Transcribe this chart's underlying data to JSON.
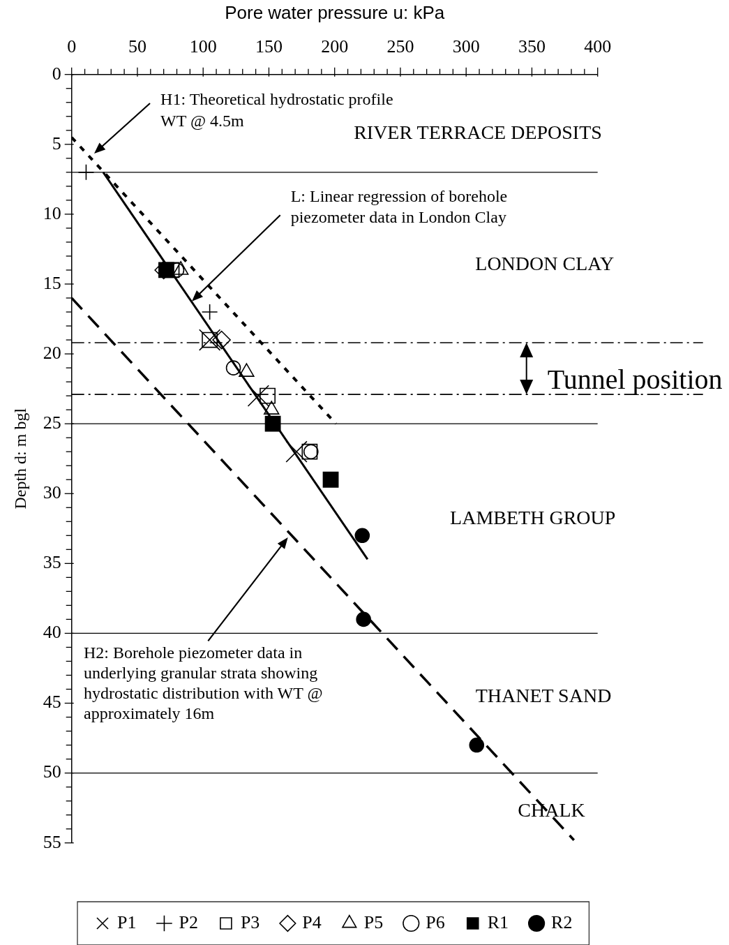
{
  "chart_data": {
    "type": "scatter",
    "xlabel": "Pore water pressure u: kPa",
    "ylabel": "Depth d: m bgl",
    "xlim": [
      0,
      400
    ],
    "ylim": [
      55,
      0
    ],
    "xticks": [
      0,
      {
        "value": 10,
        "label": null
      },
      {
        "value": 20,
        "label": null
      },
      {
        "value": 30,
        "label": null
      },
      {
        "value": 40,
        "label": null
      },
      50,
      {
        "value": 60,
        "label": null
      },
      {
        "value": 70,
        "label": null
      },
      {
        "value": 80,
        "label": null
      },
      {
        "value": 90,
        "label": null
      },
      100,
      {
        "value": 110,
        "label": null
      },
      {
        "value": 120,
        "label": null
      },
      {
        "value": 130,
        "label": null
      },
      {
        "value": 140,
        "label": null
      },
      150,
      {
        "value": 160,
        "label": null
      },
      {
        "value": 170,
        "label": null
      },
      {
        "value": 180,
        "label": null
      },
      {
        "value": 190,
        "label": null
      },
      200,
      {
        "value": 210,
        "label": null
      },
      {
        "value": 220,
        "label": null
      },
      {
        "value": 230,
        "label": null
      },
      {
        "value": 240,
        "label": null
      },
      250,
      {
        "value": 260,
        "label": null
      },
      {
        "value": 270,
        "label": null
      },
      {
        "value": 280,
        "label": null
      },
      {
        "value": 290,
        "label": null
      },
      300,
      {
        "value": 310,
        "label": null
      },
      {
        "value": 320,
        "label": null
      },
      {
        "value": 330,
        "label": null
      },
      {
        "value": 340,
        "label": null
      },
      350,
      {
        "value": 360,
        "label": null
      },
      {
        "value": 370,
        "label": null
      },
      {
        "value": 380,
        "label": null
      },
      {
        "value": 390,
        "label": null
      },
      400
    ],
    "yticks": [
      0,
      {
        "value": 1,
        "label": null
      },
      {
        "value": 2,
        "label": null
      },
      {
        "value": 3,
        "label": null
      },
      {
        "value": 4,
        "label": null
      },
      5,
      {
        "value": 6,
        "label": null
      },
      {
        "value": 7,
        "label": null
      },
      {
        "value": 8,
        "label": null
      },
      {
        "value": 9,
        "label": null
      },
      10,
      {
        "value": 11,
        "label": null
      },
      {
        "value": 12,
        "label": null
      },
      {
        "value": 13,
        "label": null
      },
      {
        "value": 14,
        "label": null
      },
      15,
      {
        "value": 16,
        "label": null
      },
      {
        "value": 17,
        "label": null
      },
      {
        "value": 18,
        "label": null
      },
      {
        "value": 19,
        "label": null
      },
      20,
      {
        "value": 21,
        "label": null
      },
      {
        "value": 22,
        "label": null
      },
      {
        "value": 23,
        "label": null
      },
      {
        "value": 24,
        "label": null
      },
      25,
      {
        "value": 26,
        "label": null
      },
      {
        "value": 27,
        "label": null
      },
      {
        "value": 28,
        "label": null
      },
      {
        "value": 29,
        "label": null
      },
      30,
      {
        "value": 31,
        "label": null
      },
      {
        "value": 32,
        "label": null
      },
      {
        "value": 33,
        "label": null
      },
      {
        "value": 34,
        "label": null
      },
      35,
      {
        "value": 36,
        "label": null
      },
      {
        "value": 37,
        "label": null
      },
      {
        "value": 38,
        "label": null
      },
      {
        "value": 39,
        "label": null
      },
      40,
      {
        "value": 41,
        "label": null
      },
      {
        "value": 42,
        "label": null
      },
      {
        "value": 43,
        "label": null
      },
      {
        "value": 44,
        "label": null
      },
      45,
      {
        "value": 46,
        "label": null
      },
      {
        "value": 47,
        "label": null
      },
      {
        "value": 48,
        "label": null
      },
      {
        "value": 49,
        "label": null
      },
      50,
      {
        "value": 51,
        "label": null
      },
      {
        "value": 52,
        "label": null
      },
      {
        "value": 53,
        "label": null
      },
      {
        "value": 54,
        "label": null
      },
      55
    ],
    "legend": "bottom",
    "series": [
      {
        "name": "P1",
        "color": "#000000",
        "marker": "x",
        "x": [
          105,
          142,
          171
        ],
        "values": [
          19,
          23,
          27
        ]
      },
      {
        "name": "P2",
        "color": "#000000",
        "marker": "cross",
        "x": [
          11,
          105
        ],
        "values": [
          7,
          17
        ]
      },
      {
        "name": "P3",
        "color": "#000000",
        "marker": "square",
        "x": [
          76,
          105,
          149,
          181
        ],
        "values": [
          14,
          19,
          23,
          27
        ]
      },
      {
        "name": "P4",
        "color": "#000000",
        "marker": "diamond",
        "x": [
          70,
          114
        ],
        "values": [
          14,
          19
        ]
      },
      {
        "name": "P5",
        "color": "#000000",
        "marker": "triangle",
        "x": [
          83,
          133,
          152
        ],
        "values": [
          14,
          21.3,
          24
        ]
      },
      {
        "name": "P6",
        "color": "#000000",
        "marker": "circle",
        "x": [
          80,
          123,
          182
        ],
        "values": [
          14,
          21,
          27
        ]
      },
      {
        "name": "R1",
        "color": "#000000",
        "marker": "square",
        "x": [
          72,
          153,
          197
        ],
        "values": [
          14,
          25,
          29
        ]
      },
      {
        "name": "R2",
        "color": "#000000",
        "marker": "circle",
        "x": [
          221,
          222,
          308
        ],
        "values": [
          33,
          39,
          48
        ]
      },
      {
        "type": "line",
        "color": "#000000",
        "line_style": "dotted",
        "x": [
          0,
          201
        ],
        "values": [
          4.5,
          25
        ]
      },
      {
        "type": "line",
        "color": "#000000",
        "line_style": "solid",
        "x": [
          24,
          225
        ],
        "values": [
          7,
          34.7
        ]
      },
      {
        "type": "line",
        "color": "#000000",
        "line_style": "dashed",
        "x": [
          0,
          382
        ],
        "values": [
          16,
          54.8
        ]
      }
    ],
    "ref_lines": [
      {
        "axis": "y",
        "value": 7
      },
      {
        "axis": "y",
        "value": 19.2,
        "line_style": "dashdot"
      },
      {
        "axis": "y",
        "value": 22.9,
        "line_style": "dashdot",
        "label": "Tunnel position"
      },
      {
        "axis": "y",
        "value": 25
      },
      {
        "axis": "y",
        "value": 40
      },
      {
        "axis": "y",
        "value": 50
      }
    ],
    "annotations": [
      "H1: Theoretical hydrostatic profile WT @ 4.5m",
      "L: Linear regression of borehole piezometer data in London Clay",
      "H2: Borehole piezometer data in underlying granular strata showing hydrostatic distribution with WT @ approximately 16m",
      "RIVER TERRACE DEPOSITS",
      "LONDON CLAY",
      "LAMBETH GROUP",
      "THANET SAND",
      "CHALK"
    ]
  }
}
